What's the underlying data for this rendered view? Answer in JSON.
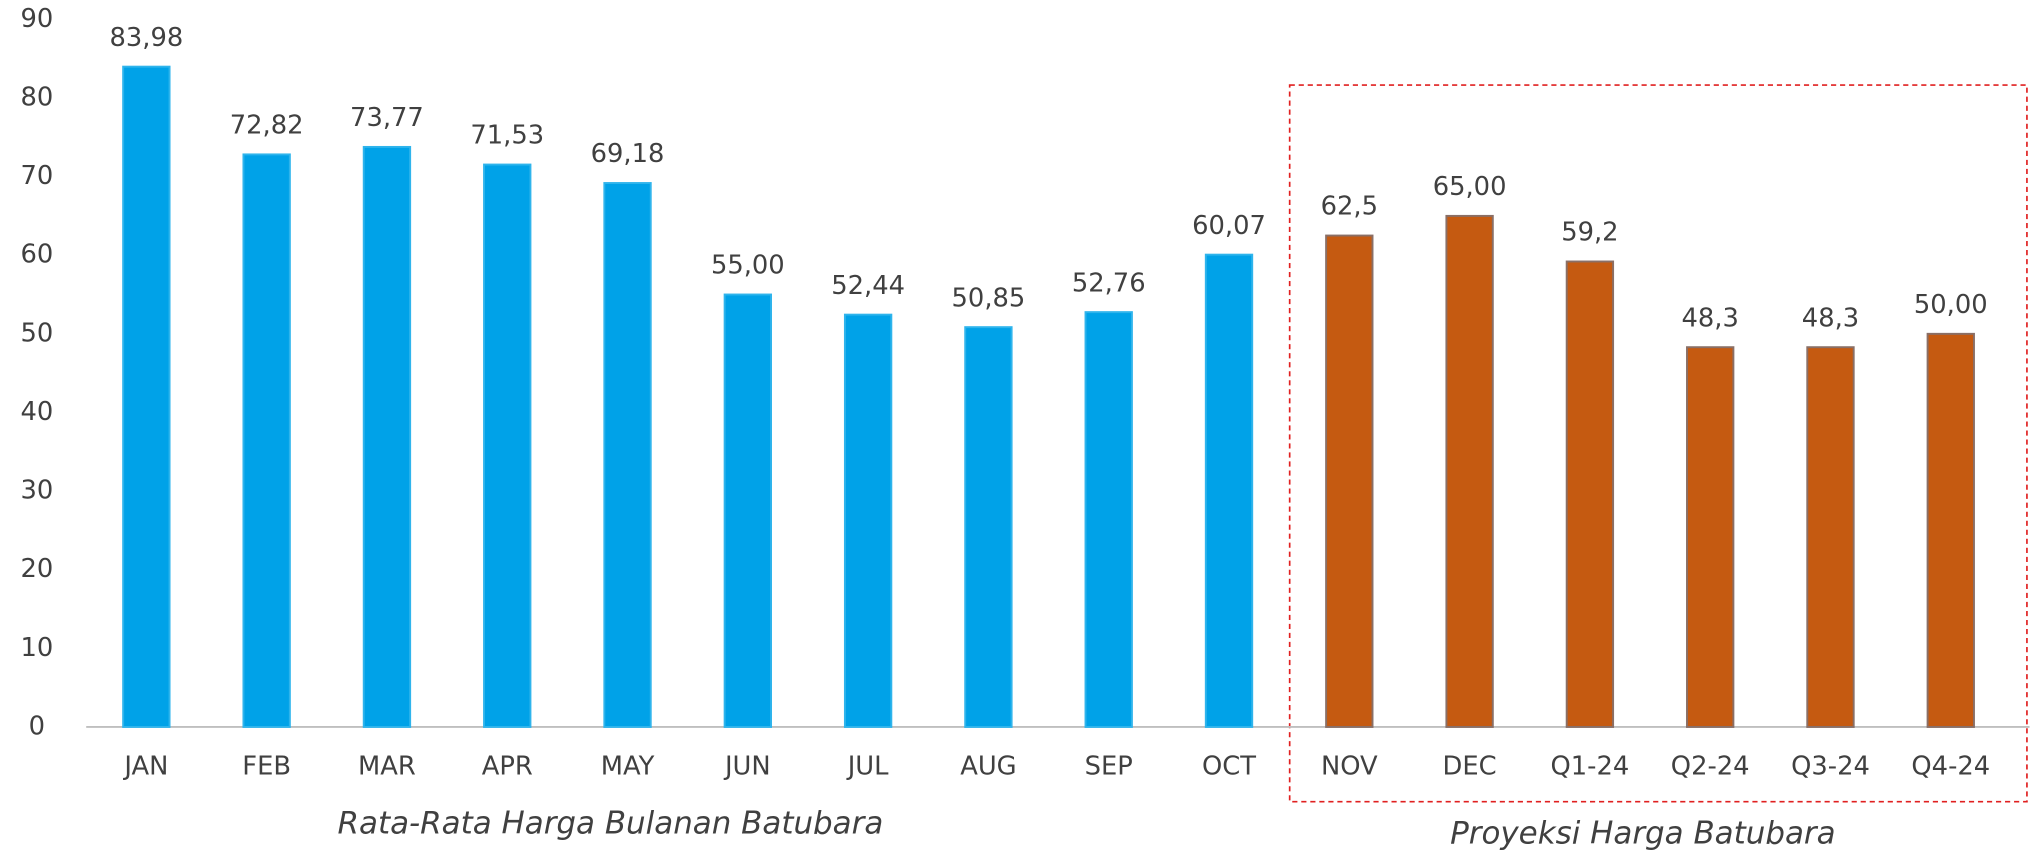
{
  "chart_data": {
    "type": "bar",
    "categories": [
      "JAN",
      "FEB",
      "MAR",
      "APR",
      "MAY",
      "JUN",
      "JUL",
      "AUG",
      "SEP",
      "OCT",
      "NOV",
      "DEC",
      "Q1-24",
      "Q2-24",
      "Q3-24",
      "Q4-24"
    ],
    "values": [
      83.98,
      72.82,
      73.77,
      71.53,
      69.18,
      55.0,
      52.44,
      50.85,
      52.76,
      60.07,
      62.5,
      65.0,
      59.2,
      48.3,
      48.3,
      50.0
    ],
    "value_labels": [
      "83,98",
      "72,82",
      "73,77",
      "71,53",
      "69,18",
      "55,00",
      "52,44",
      "50,85",
      "52,76",
      "60,07",
      "62,5",
      "65,00",
      "59,2",
      "48,3",
      "48,3",
      "50,00"
    ],
    "colors": [
      "#00a2e8",
      "#00a2e8",
      "#00a2e8",
      "#00a2e8",
      "#00a2e8",
      "#00a2e8",
      "#00a2e8",
      "#00a2e8",
      "#00a2e8",
      "#00a2e8",
      "#c55a11",
      "#c55a11",
      "#c55a11",
      "#c55a11",
      "#c55a11",
      "#c55a11"
    ],
    "ylim": [
      0,
      90
    ],
    "yticks": [
      0,
      10,
      20,
      30,
      40,
      50,
      60,
      70,
      80,
      90
    ],
    "grid": false,
    "annotations": [
      {
        "text": "Rata-Rata Harga Bulanan Batubara",
        "color": "#12a6e0"
      },
      {
        "text": "Proyeksi Harga Batubara",
        "color": "#ed7d31"
      }
    ]
  }
}
